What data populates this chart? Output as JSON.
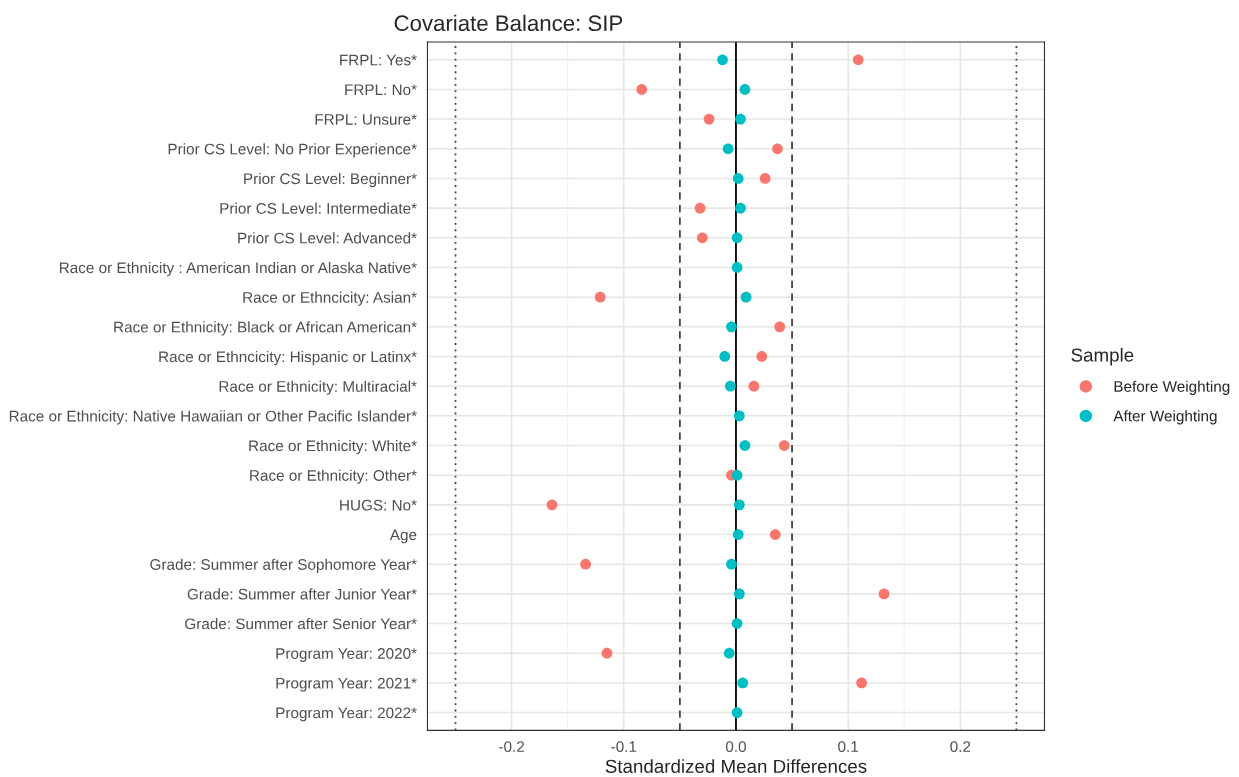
{
  "chart_data": {
    "type": "scatter",
    "title": "Covariate Balance: SIP",
    "xlabel": "Standardized Mean Differences",
    "legend_title": "Sample",
    "legend": "right",
    "grid": true,
    "marker": "circle",
    "orientation": "horizontal",
    "categories": [
      "FRPL: Yes*",
      "FRPL: No*",
      "FRPL: Unsure*",
      "Prior CS Level: No Prior Experience*",
      "Prior CS Level: Beginner*",
      "Prior CS Level: Intermediate*",
      "Prior CS Level: Advanced*",
      "Race or Ethnicity : American Indian or Alaska Native*",
      "Race or Ethncicity: Asian*",
      "Race or Ethnicity: Black or African American*",
      "Race or Ethncicity: Hispanic or Latinx*",
      "Race or Ethnicity: Multiracial*",
      "Race or Ethnicity: Native Hawaiian or Other Pacific Islander*",
      "Race or Ethnicity: White*",
      "Race or Ethnicity: Other*",
      "HUGS: No*",
      "Age",
      "Grade: Summer after Sophomore Year*",
      "Grade: Summer after Junior Year*",
      "Grade: Summer after Senior Year*",
      "Program Year: 2020*",
      "Program Year: 2021*",
      "Program Year: 2022*"
    ],
    "series": [
      {
        "name": "Before Weighting",
        "color": "#f8766d",
        "values": [
          0.109,
          -0.084,
          -0.024,
          0.037,
          0.026,
          -0.032,
          -0.03,
          null,
          -0.121,
          0.039,
          0.023,
          0.016,
          null,
          0.043,
          -0.004,
          -0.164,
          0.035,
          -0.134,
          0.132,
          null,
          -0.115,
          0.112,
          null
        ]
      },
      {
        "name": "After Weighting",
        "color": "#00bfc4",
        "values": [
          -0.012,
          0.008,
          0.004,
          -0.007,
          0.002,
          0.004,
          0.001,
          0.001,
          0.009,
          -0.004,
          -0.01,
          -0.005,
          0.003,
          0.008,
          0.001,
          0.003,
          0.002,
          -0.004,
          0.003,
          0.001,
          -0.006,
          0.006,
          0.001
        ]
      }
    ],
    "xlim": [
      -0.275,
      0.275
    ],
    "xticks": [
      -0.2,
      -0.1,
      {
        "value": 0,
        "label": "0.0"
      },
      0.1,
      0.2
    ],
    "ref_lines": [
      {
        "axis": "x",
        "value": -0.25,
        "line_style": "dotted",
        "color": "#444444"
      },
      {
        "axis": "x",
        "value": 0.25,
        "line_style": "dotted",
        "color": "#444444"
      },
      {
        "axis": "x",
        "value": -0.05,
        "line_style": "dashed",
        "color": "#444444"
      },
      {
        "axis": "x",
        "value": 0.05,
        "line_style": "dashed",
        "color": "#444444"
      },
      {
        "axis": "x",
        "value": 0,
        "line_style": "solid",
        "color": "#000000"
      }
    ]
  }
}
